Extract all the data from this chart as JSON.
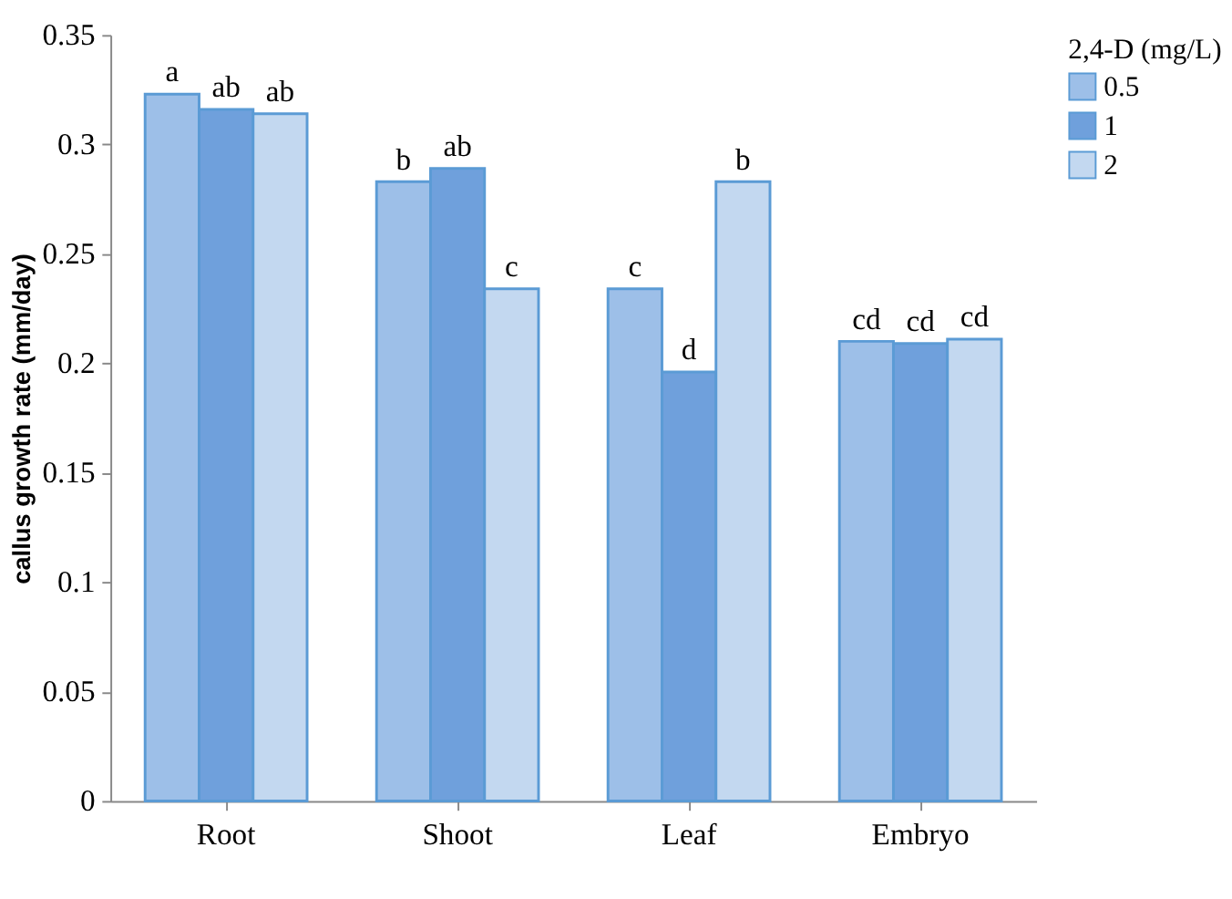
{
  "chart_data": {
    "type": "bar",
    "ylabel": "callus growth rate (mm/day)",
    "legend_title": "2,4-D (mg/L)",
    "categories": [
      "Root",
      "Shoot",
      "Leaf",
      "Embryo"
    ],
    "series": [
      {
        "name": "0.5",
        "color": "#9dbfe8",
        "values": [
          0.323,
          0.283,
          0.234,
          0.21
        ],
        "value_labels": [
          "a",
          "b",
          "c",
          "cd"
        ]
      },
      {
        "name": "1",
        "color": "#6fa0dc",
        "values": [
          0.316,
          0.289,
          0.196,
          0.209
        ],
        "value_labels": [
          "ab",
          "ab",
          "d",
          "cd"
        ]
      },
      {
        "name": "2",
        "color": "#c3d8f0",
        "values": [
          0.314,
          0.234,
          0.283,
          0.211
        ],
        "value_labels": [
          "ab",
          "c",
          "b",
          "cd"
        ]
      }
    ],
    "ylim": [
      0,
      0.35
    ],
    "yticks": [
      0,
      0.05,
      0.1,
      0.15,
      0.2,
      0.25,
      0.3,
      0.35
    ],
    "grid": false,
    "legend": "top right"
  }
}
